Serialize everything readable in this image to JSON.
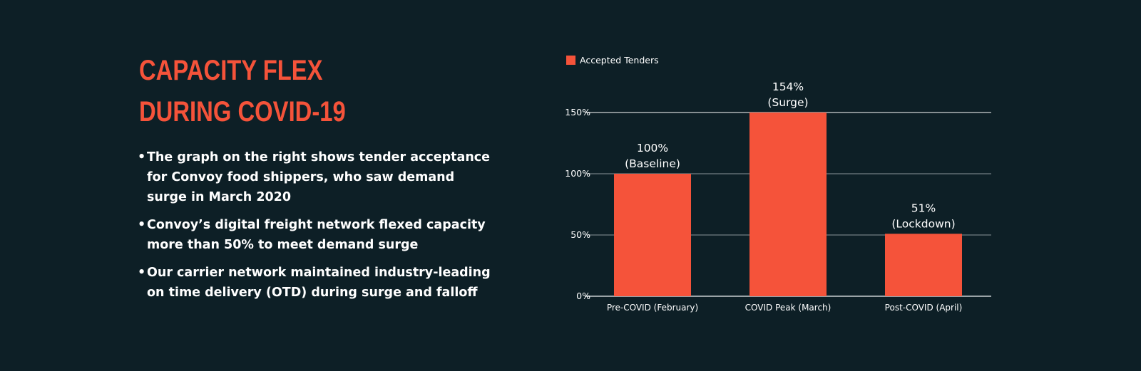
{
  "slide": {
    "title_lines": [
      "CAPACITY FLEX",
      "DURING COVID-19"
    ],
    "bullets": [
      "The graph on the right shows tender acceptance for Convoy food shippers, who saw demand surge in March 2020",
      "Convoy’s digital freight network flexed capacity more than 50% to meet demand surge",
      "Our carrier network maintained industry-leading on time delivery (OTD) during surge and falloff"
    ]
  },
  "colors": {
    "background": "#0d1f26",
    "accent": "#f5533a",
    "text": "#ffffff",
    "grid": "#8a9499"
  },
  "chart_data": {
    "type": "bar",
    "categories": [
      "Pre-COVID (February)",
      "COVID Peak (March)",
      "Post-COVID (April)"
    ],
    "series": [
      {
        "name": "Accepted Tenders",
        "values": [
          100,
          154,
          51
        ]
      }
    ],
    "data_labels": [
      [
        "100%",
        "(Baseline)"
      ],
      [
        "154%",
        "(Surge)"
      ],
      [
        "51%",
        "(Lockdown)"
      ]
    ],
    "yticks": [
      0,
      50,
      100,
      150
    ],
    "ytick_labels": [
      "0%",
      "50%",
      "100%",
      "150%"
    ],
    "ylim": [
      0,
      150
    ],
    "title": "",
    "xlabel": "",
    "ylabel": "",
    "legend": "top-left",
    "grid": true
  }
}
